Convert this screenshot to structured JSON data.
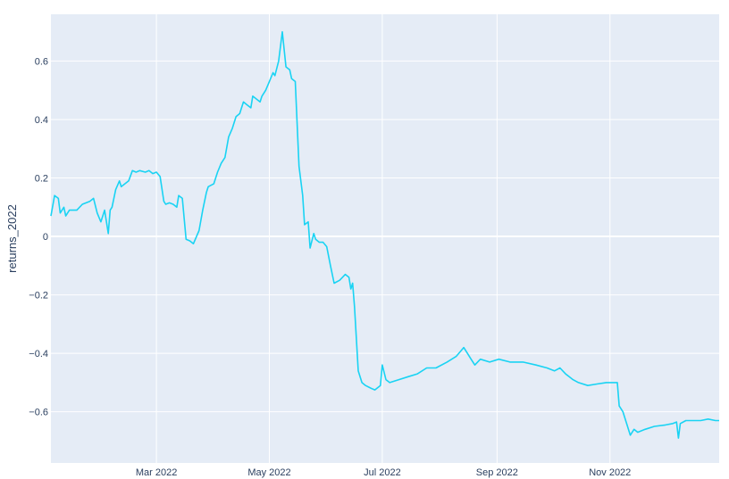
{
  "chart_data": {
    "type": "line",
    "title": "",
    "xlabel": "",
    "ylabel": "returns_2022",
    "ylim": [
      -0.775,
      0.76
    ],
    "xlim": [
      "2022-01-03",
      "2022-12-30"
    ],
    "grid": true,
    "colors": {
      "plot_bg": "#e5ecf6",
      "grid": "#ffffff",
      "line": "#19d3f3",
      "text": "#2a3f5f"
    },
    "x_ticks": [
      {
        "date": "2022-03-01",
        "label": "Mar 2022"
      },
      {
        "date": "2022-05-01",
        "label": "May 2022"
      },
      {
        "date": "2022-07-01",
        "label": "Jul 2022"
      },
      {
        "date": "2022-09-01",
        "label": "Sep 2022"
      },
      {
        "date": "2022-11-01",
        "label": "Nov 2022"
      }
    ],
    "y_ticks": [
      {
        "value": 0.6,
        "label": "0.6"
      },
      {
        "value": 0.4,
        "label": "0.4"
      },
      {
        "value": 0.2,
        "label": "0.2"
      },
      {
        "value": 0,
        "label": "0"
      },
      {
        "value": -0.2,
        "label": "−0.2"
      },
      {
        "value": -0.4,
        "label": "−0.4"
      },
      {
        "value": -0.6,
        "label": "−0.6"
      }
    ],
    "series": [
      {
        "points": [
          [
            "2022-01-03",
            0.07
          ],
          [
            "2022-01-05",
            0.14
          ],
          [
            "2022-01-07",
            0.13
          ],
          [
            "2022-01-08",
            0.08
          ],
          [
            "2022-01-10",
            0.1
          ],
          [
            "2022-01-11",
            0.07
          ],
          [
            "2022-01-13",
            0.09
          ],
          [
            "2022-01-17",
            0.09
          ],
          [
            "2022-01-20",
            0.11
          ],
          [
            "2022-01-24",
            0.12
          ],
          [
            "2022-01-26",
            0.13
          ],
          [
            "2022-01-28",
            0.08
          ],
          [
            "2022-01-30",
            0.05
          ],
          [
            "2022-02-01",
            0.09
          ],
          [
            "2022-02-03",
            0.01
          ],
          [
            "2022-02-04",
            0.09
          ],
          [
            "2022-02-05",
            0.1
          ],
          [
            "2022-02-07",
            0.16
          ],
          [
            "2022-02-09",
            0.19
          ],
          [
            "2022-02-10",
            0.17
          ],
          [
            "2022-02-14",
            0.19
          ],
          [
            "2022-02-16",
            0.225
          ],
          [
            "2022-02-18",
            0.22
          ],
          [
            "2022-02-20",
            0.225
          ],
          [
            "2022-02-23",
            0.22
          ],
          [
            "2022-02-25",
            0.225
          ],
          [
            "2022-02-27",
            0.215
          ],
          [
            "2022-03-01",
            0.22
          ],
          [
            "2022-03-03",
            0.205
          ],
          [
            "2022-03-05",
            0.12
          ],
          [
            "2022-03-06",
            0.11
          ],
          [
            "2022-03-08",
            0.115
          ],
          [
            "2022-03-10",
            0.11
          ],
          [
            "2022-03-12",
            0.1
          ],
          [
            "2022-03-13",
            0.14
          ],
          [
            "2022-03-15",
            0.13
          ],
          [
            "2022-03-16",
            0.06
          ],
          [
            "2022-03-17",
            -0.01
          ],
          [
            "2022-03-19",
            -0.015
          ],
          [
            "2022-03-21",
            -0.025
          ],
          [
            "2022-03-24",
            0.02
          ],
          [
            "2022-03-26",
            0.09
          ],
          [
            "2022-03-28",
            0.15
          ],
          [
            "2022-03-29",
            0.17
          ],
          [
            "2022-04-01",
            0.18
          ],
          [
            "2022-04-03",
            0.22
          ],
          [
            "2022-04-05",
            0.25
          ],
          [
            "2022-04-07",
            0.27
          ],
          [
            "2022-04-09",
            0.34
          ],
          [
            "2022-04-11",
            0.37
          ],
          [
            "2022-04-13",
            0.41
          ],
          [
            "2022-04-15",
            0.42
          ],
          [
            "2022-04-17",
            0.46
          ],
          [
            "2022-04-19",
            0.45
          ],
          [
            "2022-04-21",
            0.44
          ],
          [
            "2022-04-22",
            0.48
          ],
          [
            "2022-04-24",
            0.47
          ],
          [
            "2022-04-26",
            0.46
          ],
          [
            "2022-04-27",
            0.48
          ],
          [
            "2022-04-29",
            0.5
          ],
          [
            "2022-05-01",
            0.53
          ],
          [
            "2022-05-03",
            0.56
          ],
          [
            "2022-05-04",
            0.55
          ],
          [
            "2022-05-06",
            0.6
          ],
          [
            "2022-05-08",
            0.7
          ],
          [
            "2022-05-10",
            0.58
          ],
          [
            "2022-05-12",
            0.57
          ],
          [
            "2022-05-13",
            0.54
          ],
          [
            "2022-05-15",
            0.53
          ],
          [
            "2022-05-17",
            0.24
          ],
          [
            "2022-05-19",
            0.14
          ],
          [
            "2022-05-20",
            0.04
          ],
          [
            "2022-05-22",
            0.05
          ],
          [
            "2022-05-23",
            -0.04
          ],
          [
            "2022-05-25",
            0.01
          ],
          [
            "2022-05-26",
            -0.01
          ],
          [
            "2022-05-28",
            -0.02
          ],
          [
            "2022-05-30",
            -0.02
          ],
          [
            "2022-06-01",
            -0.035
          ],
          [
            "2022-06-03",
            -0.1
          ],
          [
            "2022-06-05",
            -0.16
          ],
          [
            "2022-06-08",
            -0.15
          ],
          [
            "2022-06-11",
            -0.13
          ],
          [
            "2022-06-13",
            -0.14
          ],
          [
            "2022-06-14",
            -0.18
          ],
          [
            "2022-06-15",
            -0.16
          ],
          [
            "2022-06-16",
            -0.24
          ],
          [
            "2022-06-17",
            -0.35
          ],
          [
            "2022-06-18",
            -0.46
          ],
          [
            "2022-06-20",
            -0.5
          ],
          [
            "2022-06-22",
            -0.51
          ],
          [
            "2022-06-25",
            -0.52
          ],
          [
            "2022-06-27",
            -0.525
          ],
          [
            "2022-06-30",
            -0.51
          ],
          [
            "2022-07-01",
            -0.44
          ],
          [
            "2022-07-03",
            -0.49
          ],
          [
            "2022-07-05",
            -0.5
          ],
          [
            "2022-07-10",
            -0.49
          ],
          [
            "2022-07-15",
            -0.48
          ],
          [
            "2022-07-20",
            -0.47
          ],
          [
            "2022-07-25",
            -0.45
          ],
          [
            "2022-07-30",
            -0.45
          ],
          [
            "2022-08-05",
            -0.43
          ],
          [
            "2022-08-10",
            -0.41
          ],
          [
            "2022-08-14",
            -0.38
          ],
          [
            "2022-08-16",
            -0.4
          ],
          [
            "2022-08-18",
            -0.42
          ],
          [
            "2022-08-20",
            -0.44
          ],
          [
            "2022-08-23",
            -0.42
          ],
          [
            "2022-08-28",
            -0.43
          ],
          [
            "2022-09-02",
            -0.42
          ],
          [
            "2022-09-08",
            -0.43
          ],
          [
            "2022-09-15",
            -0.43
          ],
          [
            "2022-09-22",
            -0.44
          ],
          [
            "2022-09-28",
            -0.45
          ],
          [
            "2022-10-02",
            -0.46
          ],
          [
            "2022-10-05",
            -0.45
          ],
          [
            "2022-10-08",
            -0.47
          ],
          [
            "2022-10-12",
            -0.49
          ],
          [
            "2022-10-15",
            -0.5
          ],
          [
            "2022-10-20",
            -0.51
          ],
          [
            "2022-10-25",
            -0.505
          ],
          [
            "2022-10-30",
            -0.5
          ],
          [
            "2022-11-03",
            -0.5
          ],
          [
            "2022-11-05",
            -0.5
          ],
          [
            "2022-11-06",
            -0.58
          ],
          [
            "2022-11-08",
            -0.6
          ],
          [
            "2022-11-10",
            -0.64
          ],
          [
            "2022-11-12",
            -0.68
          ],
          [
            "2022-11-14",
            -0.66
          ],
          [
            "2022-11-16",
            -0.67
          ],
          [
            "2022-11-20",
            -0.66
          ],
          [
            "2022-11-25",
            -0.65
          ],
          [
            "2022-12-01",
            -0.645
          ],
          [
            "2022-12-05",
            -0.64
          ],
          [
            "2022-12-07",
            -0.635
          ],
          [
            "2022-12-08",
            -0.69
          ],
          [
            "2022-12-09",
            -0.64
          ],
          [
            "2022-12-12",
            -0.63
          ],
          [
            "2022-12-16",
            -0.63
          ],
          [
            "2022-12-20",
            -0.63
          ],
          [
            "2022-12-24",
            -0.625
          ],
          [
            "2022-12-28",
            -0.63
          ],
          [
            "2022-12-30",
            -0.63
          ]
        ]
      }
    ]
  }
}
